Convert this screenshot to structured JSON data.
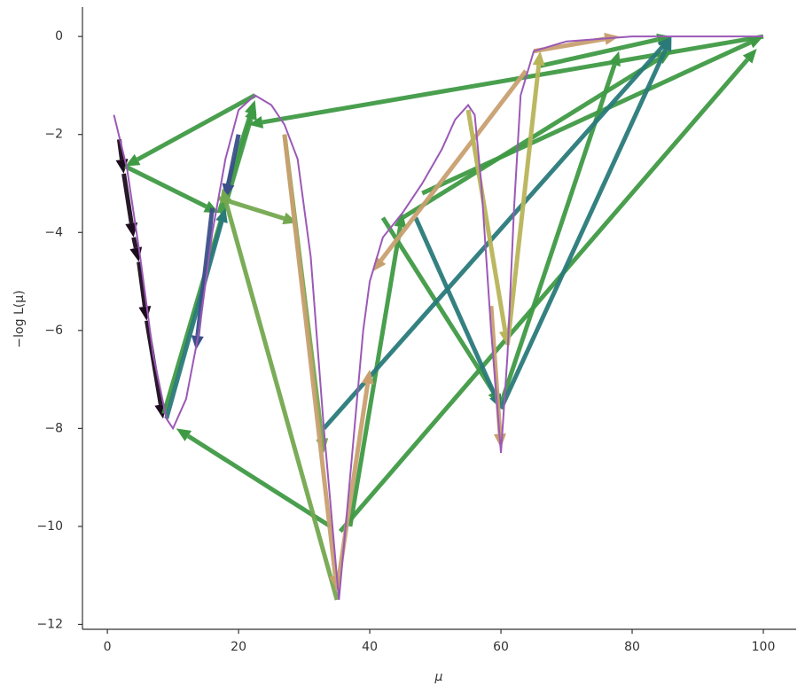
{
  "chart_data": {
    "type": "arrows",
    "x_label": "μ",
    "y_label": "−log L(μ)",
    "xlim": [
      -3.8,
      105
    ],
    "ylim": [
      -12.1,
      0.6
    ],
    "xticks": [
      0,
      20,
      40,
      60,
      80,
      100
    ],
    "yticks": [
      0,
      {
        "value": -2,
        "label": "−2"
      },
      {
        "value": -4,
        "label": "−4"
      },
      {
        "value": -6,
        "label": "−6"
      },
      {
        "value": -8,
        "label": "−8"
      },
      {
        "value": -10,
        "label": "−10"
      },
      {
        "value": -12,
        "label": "−12"
      }
    ],
    "curve": {
      "color": "#9b59b6",
      "x": [
        1,
        3,
        5,
        7,
        9,
        10,
        12,
        14,
        16,
        18,
        20,
        22.5,
        25,
        27,
        29,
        31,
        33,
        35.3,
        37,
        39,
        40,
        42,
        45,
        48,
        51,
        53,
        55,
        56,
        57,
        58.5,
        60,
        61,
        62,
        63,
        65,
        70,
        80,
        100
      ],
      "y": [
        -1.6,
        -2.7,
        -4.5,
        -6.5,
        -7.8,
        -8.0,
        -7.4,
        -6,
        -4,
        -2.5,
        -1.5,
        -1.2,
        -1.4,
        -1.8,
        -2.5,
        -4.5,
        -8,
        -11.5,
        -9,
        -6,
        -5,
        -4.1,
        -3.6,
        -3,
        -2.3,
        -1.7,
        -1.4,
        -1.6,
        -3,
        -6,
        -8.5,
        -6.5,
        -3.5,
        -1.2,
        -0.3,
        -0.1,
        0,
        0
      ]
    },
    "arrows": [
      {
        "color": "#1c0c1e",
        "x": [
          1.8,
          2.5
        ],
        "y": [
          -2.1,
          -2.8
        ]
      },
      {
        "color": "#1c0c1e",
        "x": [
          2.5,
          4
        ],
        "y": [
          -2.8,
          -4.1
        ]
      },
      {
        "color": "#1c0c1e",
        "x": [
          4,
          4.8
        ],
        "y": [
          -4.1,
          -4.6
        ]
      },
      {
        "color": "#1c0c1e",
        "x": [
          4.8,
          6
        ],
        "y": [
          -4.6,
          -5.8
        ]
      },
      {
        "color": "#1c0c1e",
        "x": [
          6,
          8.5
        ],
        "y": [
          -5.8,
          -7.8
        ]
      },
      {
        "color": "#3f9a45",
        "x": [
          100,
          21.5
        ],
        "y": [
          0,
          -1.8
        ]
      },
      {
        "color": "#3f9a45",
        "x": [
          22.5,
          2.7
        ],
        "y": [
          -1.2,
          -2.65
        ]
      },
      {
        "color": "#3f9a45",
        "x": [
          2.7,
          17
        ],
        "y": [
          -2.65,
          -3.6
        ]
      },
      {
        "color": "#3f9a45",
        "x": [
          17,
          22.5
        ],
        "y": [
          -3.6,
          -1.3
        ]
      },
      {
        "color": "#3f9a45",
        "x": [
          8.6,
          22.5
        ],
        "y": [
          -7.7,
          -1.4
        ]
      },
      {
        "color": "#3f9a45",
        "x": [
          34,
          10.5
        ],
        "y": [
          -10,
          -8
        ]
      },
      {
        "color": "#3f9a45",
        "x": [
          35.5,
          99
        ],
        "y": [
          -10.1,
          -0.25
        ]
      },
      {
        "color": "#3f9a45",
        "x": [
          37,
          45
        ],
        "y": [
          -10,
          -3.6
        ]
      },
      {
        "color": "#3f9a45",
        "x": [
          45,
          86
        ],
        "y": [
          -3.7,
          -0.3
        ]
      },
      {
        "color": "#3f9a45",
        "x": [
          48,
          100
        ],
        "y": [
          -3.2,
          0
        ]
      },
      {
        "color": "#3f9a45",
        "x": [
          60,
          78
        ],
        "y": [
          -7.5,
          -0.3
        ]
      },
      {
        "color": "#3f9a45",
        "x": [
          42,
          60
        ],
        "y": [
          -3.7,
          -7.5
        ]
      },
      {
        "color": "#3f9a45",
        "x": [
          66,
          86
        ],
        "y": [
          -0.6,
          0
        ]
      },
      {
        "color": "#2a7a7a",
        "x": [
          33,
          86
        ],
        "y": [
          -8,
          0
        ]
      },
      {
        "color": "#2a7a7a",
        "x": [
          47,
          60
        ],
        "y": [
          -3.7,
          -7.6
        ]
      },
      {
        "color": "#2a7a7a",
        "x": [
          60,
          86
        ],
        "y": [
          -7.6,
          0
        ]
      },
      {
        "color": "#2a7a7a",
        "x": [
          9,
          18
        ],
        "y": [
          -7.8,
          -3.5
        ]
      },
      {
        "color": "#3b4f8a",
        "x": [
          16,
          13.5
        ],
        "y": [
          -3.5,
          -6.4
        ]
      },
      {
        "color": "#3b4f8a",
        "x": [
          20,
          18
        ],
        "y": [
          -2,
          -3.3
        ]
      },
      {
        "color": "#74a84f",
        "x": [
          17,
          29
        ],
        "y": [
          -3.3,
          -3.8
        ]
      },
      {
        "color": "#74a84f",
        "x": [
          35,
          17.5
        ],
        "y": [
          -11.5,
          -3.1
        ]
      },
      {
        "color": "#74a84f",
        "x": [
          27,
          33
        ],
        "y": [
          -2,
          -8.5
        ]
      },
      {
        "color": "#c8a070",
        "x": [
          27,
          35
        ],
        "y": [
          -2,
          -11.3
        ]
      },
      {
        "color": "#c8a070",
        "x": [
          35,
          40
        ],
        "y": [
          -11.3,
          -6.8
        ]
      },
      {
        "color": "#c8a070",
        "x": [
          63.8,
          40.4
        ],
        "y": [
          -0.7,
          -4.8
        ]
      },
      {
        "color": "#c8a070",
        "x": [
          65,
          78
        ],
        "y": [
          -0.3,
          0
        ]
      },
      {
        "color": "#c8a070",
        "x": [
          58.5,
          60
        ],
        "y": [
          -5.5,
          -8.4
        ]
      },
      {
        "color": "#b8b45a",
        "x": [
          61,
          66
        ],
        "y": [
          -6.3,
          -0.3
        ]
      },
      {
        "color": "#b8b45a",
        "x": [
          55,
          61
        ],
        "y": [
          -1.5,
          -6.3
        ]
      }
    ]
  }
}
